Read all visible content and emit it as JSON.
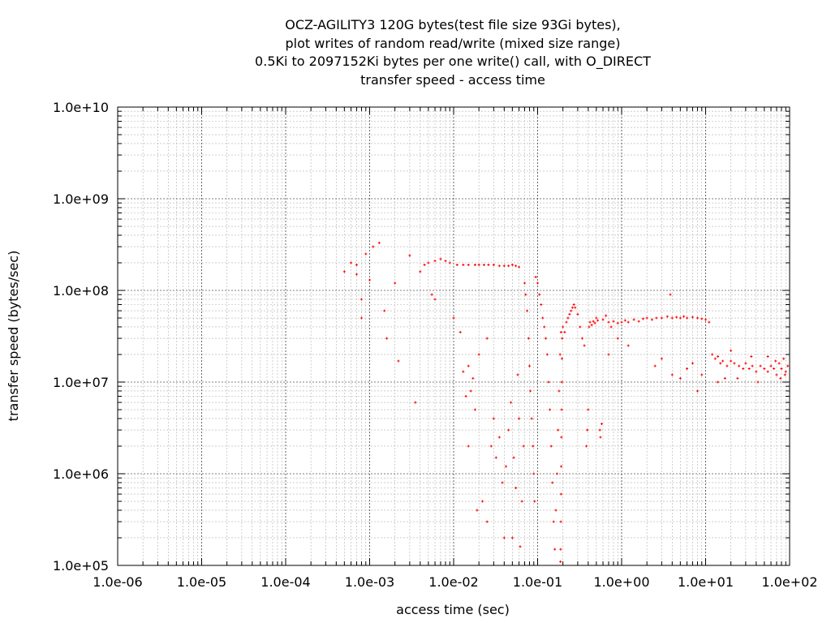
{
  "chart_data": {
    "type": "scatter",
    "title_lines": [
      "OCZ-AGILITY3 120G bytes(test file size 93Gi bytes),",
      "plot writes of random read/write (mixed size range)",
      "0.5Ki to 2097152Ki bytes per one write() call, with O_DIRECT",
      "transfer speed - access time"
    ],
    "xlabel": "access time (sec)",
    "ylabel": "transfer speed (bytes/sec)",
    "x_scale": "log",
    "y_scale": "log",
    "xlim": [
      1e-06,
      100
    ],
    "ylim": [
      100000,
      10000000000
    ],
    "x_ticks": [
      "1.0e-06",
      "1.0e-05",
      "1.0e-04",
      "1.0e-03",
      "1.0e-02",
      "1.0e-01",
      "1.0e+00",
      "1.0e+01",
      "1.0e+02"
    ],
    "y_ticks": [
      "1.0e+05",
      "1.0e+06",
      "1.0e+07",
      "1.0e+08",
      "1.0e+09",
      "1.0e+10"
    ],
    "grid": true,
    "point_color": "#ff0000",
    "series": [
      {
        "points": [
          [
            0.0005,
            160000000.0
          ],
          [
            0.0006,
            200000000.0
          ],
          [
            0.0007,
            150000000.0
          ],
          [
            0.0008,
            80000000.0
          ],
          [
            0.0009,
            250000000.0
          ],
          [
            0.0011,
            300000000.0
          ],
          [
            0.0013,
            330000000.0
          ],
          [
            0.0008,
            50000000.0
          ],
          [
            0.001,
            130000000.0
          ],
          [
            0.0007,
            190000000.0
          ],
          [
            0.0015,
            60000000.0
          ],
          [
            0.0016,
            30000000.0
          ],
          [
            0.002,
            120000000.0
          ],
          [
            0.0022,
            17000000.0
          ],
          [
            0.003,
            240000000.0
          ],
          [
            0.0035,
            6000000.0
          ],
          [
            0.004,
            160000000.0
          ],
          [
            0.0045,
            190000000.0
          ],
          [
            0.005,
            200000000.0
          ],
          [
            0.0055,
            90000000.0
          ],
          [
            0.006,
            210000000.0
          ],
          [
            0.007,
            220000000.0
          ],
          [
            0.008,
            210000000.0
          ],
          [
            0.006,
            80000000.0
          ],
          [
            0.009,
            200000000.0
          ],
          [
            0.01,
            50000000.0
          ],
          [
            0.011,
            190000000.0
          ],
          [
            0.013,
            190000000.0
          ],
          [
            0.015,
            190000000.0
          ],
          [
            0.018,
            190000000.0
          ],
          [
            0.02,
            190000000.0
          ],
          [
            0.023,
            190000000.0
          ],
          [
            0.026,
            190000000.0
          ],
          [
            0.03,
            190000000.0
          ],
          [
            0.035,
            185000000.0
          ],
          [
            0.04,
            185000000.0
          ],
          [
            0.045,
            185000000.0
          ],
          [
            0.05,
            190000000.0
          ],
          [
            0.055,
            185000000.0
          ],
          [
            0.06,
            180000000.0
          ],
          [
            0.012,
            35000000.0
          ],
          [
            0.015,
            15000000.0
          ],
          [
            0.017,
            11000000.0
          ],
          [
            0.016,
            8000000.0
          ],
          [
            0.015,
            2000000.0
          ],
          [
            0.018,
            5000000.0
          ],
          [
            0.019,
            400000.0
          ],
          [
            0.014,
            7000000.0
          ],
          [
            0.013,
            13000000.0
          ],
          [
            0.02,
            20000000.0
          ],
          [
            0.025,
            30000000.0
          ],
          [
            0.022,
            500000.0
          ],
          [
            0.025,
            300000.0
          ],
          [
            0.028,
            2000000.0
          ],
          [
            0.03,
            4000000.0
          ],
          [
            0.032,
            1500000.0
          ],
          [
            0.035,
            2500000.0
          ],
          [
            0.038,
            800000.0
          ],
          [
            0.04,
            200000.0
          ],
          [
            0.042,
            1200000.0
          ],
          [
            0.045,
            3000000.0
          ],
          [
            0.048,
            6000000.0
          ],
          [
            0.05,
            200000.0
          ],
          [
            0.052,
            1500000.0
          ],
          [
            0.055,
            700000.0
          ],
          [
            0.058,
            12000000.0
          ],
          [
            0.06,
            4000000.0
          ],
          [
            0.062,
            160000.0
          ],
          [
            0.065,
            500000.0
          ],
          [
            0.068,
            2000000.0
          ],
          [
            0.07,
            120000000.0
          ],
          [
            0.072,
            90000000.0
          ],
          [
            0.075,
            60000000.0
          ],
          [
            0.078,
            30000000.0
          ],
          [
            0.08,
            15000000.0
          ],
          [
            0.082,
            8000000.0
          ],
          [
            0.085,
            4000000.0
          ],
          [
            0.088,
            2000000.0
          ],
          [
            0.09,
            1000000.0
          ],
          [
            0.092,
            500000.0
          ],
          [
            0.095,
            140000000.0
          ],
          [
            0.1,
            120000000.0
          ],
          [
            0.105,
            90000000.0
          ],
          [
            0.11,
            70000000.0
          ],
          [
            0.115,
            50000000.0
          ],
          [
            0.12,
            40000000.0
          ],
          [
            0.125,
            30000000.0
          ],
          [
            0.13,
            20000000.0
          ],
          [
            0.135,
            10000000.0
          ],
          [
            0.14,
            5000000.0
          ],
          [
            0.145,
            2000000.0
          ],
          [
            0.15,
            800000.0
          ],
          [
            0.155,
            300000.0
          ],
          [
            0.16,
            150000.0
          ],
          [
            0.165,
            400000.0
          ],
          [
            0.17,
            1000000.0
          ],
          [
            0.175,
            3000000.0
          ],
          [
            0.18,
            8000000.0
          ],
          [
            0.185,
            20000000.0
          ],
          [
            0.19,
            35000000.0
          ],
          [
            0.187,
            110000.0
          ],
          [
            0.188,
            150000.0
          ],
          [
            0.189,
            300000.0
          ],
          [
            0.19,
            600000.0
          ],
          [
            0.191,
            1200000.0
          ],
          [
            0.192,
            2500000.0
          ],
          [
            0.193,
            5000000.0
          ],
          [
            0.194,
            10000000.0
          ],
          [
            0.195,
            18000000.0
          ],
          [
            0.196,
            30000000.0
          ],
          [
            0.2,
            40000000.0
          ],
          [
            0.21,
            35000000.0
          ],
          [
            0.22,
            45000000.0
          ],
          [
            0.23,
            50000000.0
          ],
          [
            0.24,
            55000000.0
          ],
          [
            0.25,
            60000000.0
          ],
          [
            0.26,
            65000000.0
          ],
          [
            0.27,
            70000000.0
          ],
          [
            0.28,
            65000000.0
          ],
          [
            0.3,
            55000000.0
          ],
          [
            0.32,
            40000000.0
          ],
          [
            0.34,
            30000000.0
          ],
          [
            0.36,
            25000000.0
          ],
          [
            0.38,
            2000000.0
          ],
          [
            0.39,
            3000000.0
          ],
          [
            0.4,
            5000000.0
          ],
          [
            0.41,
            40000000.0
          ],
          [
            0.42,
            45000000.0
          ],
          [
            0.44,
            42000000.0
          ],
          [
            0.46,
            46000000.0
          ],
          [
            0.48,
            44000000.0
          ],
          [
            0.5,
            50000000.0
          ],
          [
            0.52,
            47000000.0
          ],
          [
            0.55,
            3000000.0
          ],
          [
            0.56,
            2500000.0
          ],
          [
            0.58,
            3500000.0
          ],
          [
            0.6,
            48000000.0
          ],
          [
            0.65,
            53000000.0
          ],
          [
            0.7,
            45000000.0
          ],
          [
            0.75,
            40000000.0
          ],
          [
            0.8,
            46000000.0
          ],
          [
            0.9,
            44000000.0
          ],
          [
            1.0,
            45000000.0
          ],
          [
            1.1,
            47000000.0
          ],
          [
            1.2,
            45000000.0
          ],
          [
            1.4,
            48000000.0
          ],
          [
            1.6,
            46000000.0
          ],
          [
            1.8,
            49000000.0
          ],
          [
            2.0,
            50000000.0
          ],
          [
            2.3,
            48000000.0
          ],
          [
            2.6,
            50000000.0
          ],
          [
            3.0,
            50000000.0
          ],
          [
            3.5,
            52000000.0
          ],
          [
            4.0,
            50000000.0
          ],
          [
            4.5,
            51000000.0
          ],
          [
            5.0,
            50000000.0
          ],
          [
            5.5,
            52000000.0
          ],
          [
            6.0,
            50000000.0
          ],
          [
            7.0,
            51000000.0
          ],
          [
            8.0,
            50000000.0
          ],
          [
            9.0,
            49000000.0
          ],
          [
            10.0,
            48000000.0
          ],
          [
            11.0,
            45000000.0
          ],
          [
            0.7,
            20000000.0
          ],
          [
            0.9,
            30000000.0
          ],
          [
            1.2,
            25000000.0
          ],
          [
            2.5,
            15000000.0
          ],
          [
            3.0,
            18000000.0
          ],
          [
            4.0,
            12000000.0
          ],
          [
            5.0,
            11000000.0
          ],
          [
            6.0,
            14000000.0
          ],
          [
            7.0,
            16000000.0
          ],
          [
            8.0,
            8000000.0
          ],
          [
            9.0,
            12000000.0
          ],
          [
            3.8,
            90000000.0
          ],
          [
            12.0,
            20000000.0
          ],
          [
            13.0,
            18000000.0
          ],
          [
            14.0,
            19000000.0
          ],
          [
            15.0,
            16000000.0
          ],
          [
            16.0,
            17000000.0
          ],
          [
            18.0,
            15000000.0
          ],
          [
            20.0,
            17000000.0
          ],
          [
            22.0,
            16000000.0
          ],
          [
            25.0,
            15000000.0
          ],
          [
            28.0,
            14000000.0
          ],
          [
            30.0,
            16000000.0
          ],
          [
            33.0,
            14000000.0
          ],
          [
            36.0,
            15000000.0
          ],
          [
            40.0,
            13000000.0
          ],
          [
            45.0,
            15000000.0
          ],
          [
            50.0,
            14000000.0
          ],
          [
            55.0,
            13000000.0
          ],
          [
            60.0,
            15000000.0
          ],
          [
            65.0,
            14000000.0
          ],
          [
            70.0,
            12000000.0
          ],
          [
            75.0,
            16000000.0
          ],
          [
            80.0,
            14000000.0
          ],
          [
            85.0,
            18000000.0
          ],
          [
            90.0,
            13000000.0
          ],
          [
            95.0,
            15000000.0
          ],
          [
            14.0,
            10000000.0
          ],
          [
            17.0,
            11000000.0
          ],
          [
            20.0,
            22000000.0
          ],
          [
            24.0,
            11000000.0
          ],
          [
            35.0,
            19000000.0
          ],
          [
            42.0,
            10000000.0
          ],
          [
            55.0,
            19000000.0
          ],
          [
            68.0,
            17000000.0
          ],
          [
            78.0,
            11000000.0
          ],
          [
            88.0,
            12000000.0
          ]
        ]
      }
    ]
  }
}
